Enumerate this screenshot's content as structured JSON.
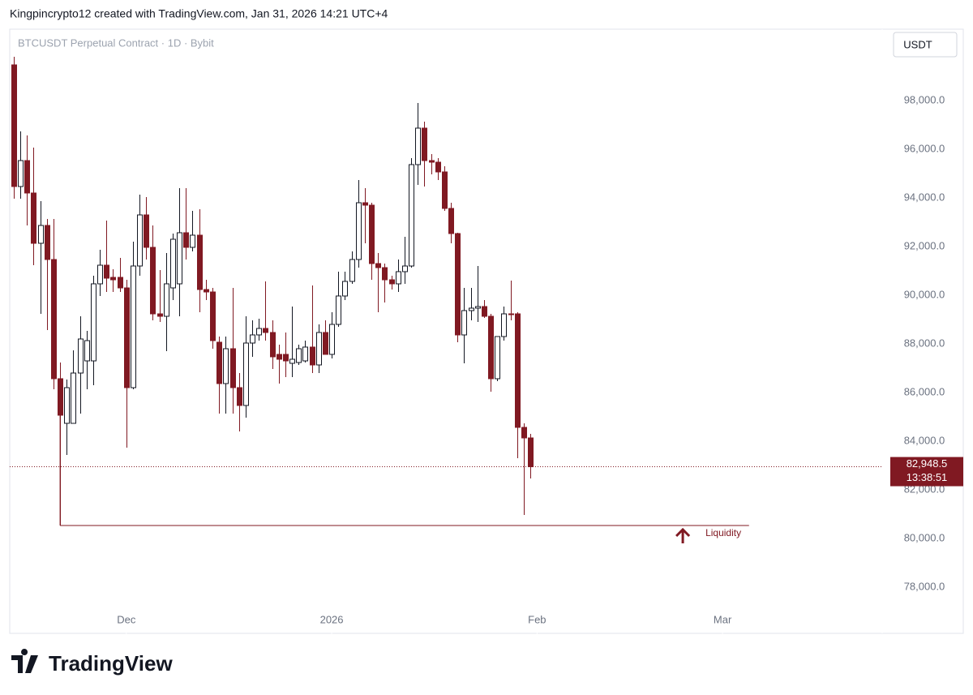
{
  "header": "Kingpincrypto12 created with TradingView.com, Jan 31, 2026 14:21 UTC+4",
  "brand": "TradingView",
  "chart_data": {
    "type": "candlestick",
    "title": "BTCUSDT Perpetual Contract · 1D · Bybit",
    "currency": "USDT",
    "up_color": "#ffffff",
    "down_color": "#801922",
    "x": [
      -17,
      -16,
      -15,
      -14,
      -13,
      -12,
      -11,
      -10,
      -9,
      -8,
      -7,
      -6,
      -5,
      -4,
      -3,
      -2,
      -1,
      0,
      1,
      2,
      3,
      4,
      5,
      6,
      7,
      8,
      9,
      10,
      11,
      12,
      13,
      14,
      15,
      16,
      17,
      18,
      19,
      20,
      21,
      22,
      23,
      24,
      25,
      26,
      27,
      28,
      29,
      30,
      31,
      32,
      33,
      34,
      35,
      36,
      37,
      38,
      39,
      40,
      41,
      42,
      43,
      44,
      45,
      46,
      47,
      48,
      49,
      50,
      51,
      52,
      53,
      54,
      55,
      56,
      57,
      58,
      59,
      60,
      61
    ],
    "open": [
      99467,
      94467,
      95533,
      94200,
      92133,
      92867,
      91467,
      86567,
      84733,
      84733,
      86800,
      87300,
      87300,
      90467,
      91233,
      90733,
      90733,
      90300,
      86200,
      91200,
      93300,
      91967,
      89233,
      89133,
      90300,
      90467,
      92567,
      91967,
      92467,
      90233,
      90133,
      88067,
      86367,
      87800,
      86200,
      85467,
      88033,
      88367,
      88633,
      88467,
      87567,
      87567,
      87200,
      87233,
      87300,
      87867,
      87133,
      88467,
      87567,
      88800,
      89967,
      90567,
      91467,
      93800,
      93700,
      91300,
      91133,
      90633,
      90467,
      90967,
      91200,
      95367,
      96867,
      95533,
      95467,
      95067,
      93567,
      92533,
      88367,
      89367,
      89467,
      89533,
      89133,
      86567,
      88300,
      89233,
      89233,
      84567,
      84133
    ],
    "high": [
      99800,
      96733,
      96567,
      96067,
      93867,
      93133,
      93133,
      87233,
      86533,
      87733,
      89133,
      88533,
      90800,
      91867,
      93067,
      91067,
      91533,
      90633,
      92200,
      94133,
      94033,
      92867,
      91033,
      91733,
      92533,
      94400,
      94400,
      93467,
      93533,
      90633,
      90300,
      88300,
      88300,
      90300,
      86800,
      89133,
      88967,
      89033,
      90567,
      88967,
      87967,
      88467,
      89533,
      87967,
      88133,
      90400,
      88800,
      88967,
      89300,
      90967,
      90967,
      91800,
      94733,
      94400,
      93800,
      91733,
      91300,
      90800,
      91467,
      92400,
      95633,
      97900,
      97133,
      95800,
      95633,
      95300,
      93800,
      92567,
      90300,
      90300,
      91200,
      89800,
      89233,
      88300,
      89533,
      90600,
      89300,
      84733,
      84300
    ],
    "low": [
      93967,
      93967,
      92867,
      91233,
      89233,
      88567,
      86133,
      80533,
      83433,
      84733,
      85133,
      86133,
      86300,
      89967,
      90133,
      90133,
      90133,
      83733,
      86133,
      90800,
      91467,
      88967,
      88900,
      87700,
      89800,
      89133,
      91467,
      91800,
      89300,
      89800,
      87800,
      85133,
      85133,
      85133,
      84400,
      84967,
      87467,
      88133,
      88133,
      86967,
      86367,
      86633,
      86633,
      87133,
      87233,
      86800,
      86800,
      87733,
      87400,
      88700,
      89800,
      90467,
      91133,
      92133,
      90633,
      89300,
      89700,
      90233,
      90133,
      90467,
      91133,
      94533,
      94467,
      94967,
      94733,
      93467,
      92133,
      88067,
      87200,
      88967,
      88900,
      89067,
      86033,
      86467,
      88133,
      88967,
      83300,
      80967,
      82467
    ],
    "close": [
      94467,
      95533,
      94200,
      92133,
      92867,
      91467,
      86567,
      85067,
      86200,
      86800,
      88200,
      88133,
      90467,
      91233,
      90700,
      90633,
      90300,
      86200,
      91200,
      93300,
      91967,
      89233,
      89133,
      90467,
      92300,
      92567,
      91967,
      92467,
      90233,
      90133,
      88133,
      86367,
      87800,
      86200,
      85467,
      88033,
      88367,
      88633,
      88467,
      87467,
      87367,
      87300,
      87367,
      87800,
      87867,
      87133,
      88467,
      87567,
      88800,
      89967,
      90567,
      91467,
      93800,
      93700,
      91300,
      91133,
      90633,
      90467,
      90967,
      91200,
      95367,
      96867,
      95533,
      95467,
      95067,
      93567,
      92533,
      88367,
      89367,
      89467,
      89533,
      89133,
      86567,
      88300,
      89233,
      89200,
      84567,
      84133,
      82948.5
    ],
    "xlim": [
      -17.6,
      114.1
    ],
    "xticks": [
      {
        "value": 0,
        "label": "Dec"
      },
      {
        "value": 31,
        "label": "2026"
      },
      {
        "value": 62,
        "label": "Feb"
      },
      {
        "value": 90,
        "label": "Mar"
      }
    ],
    "ylim": [
      76133,
      100800
    ],
    "yticks": [
      {
        "value": 78000,
        "label": "78,000.0"
      },
      {
        "value": 80000,
        "label": "80,000.0"
      },
      {
        "value": 82000,
        "label": "82,000.0"
      },
      {
        "value": 84000,
        "label": "84,000.0"
      },
      {
        "value": 86000,
        "label": "86,000.0"
      },
      {
        "value": 88000,
        "label": "88,000.0"
      },
      {
        "value": 90000,
        "label": "90,000.0"
      },
      {
        "value": 92000,
        "label": "92,000.0"
      },
      {
        "value": 94000,
        "label": "94,000.0"
      },
      {
        "value": 96000,
        "label": "96,000.0"
      },
      {
        "value": 98000,
        "label": "98,000.0"
      }
    ],
    "last_price": {
      "value": 82948.5,
      "label": "82,948.5",
      "countdown": "13:38:51"
    },
    "liquidity": {
      "label": "Liquidity",
      "price": 80533,
      "top": 86567,
      "x_start": -10,
      "x_end": 94,
      "arrow_x": 84
    }
  }
}
